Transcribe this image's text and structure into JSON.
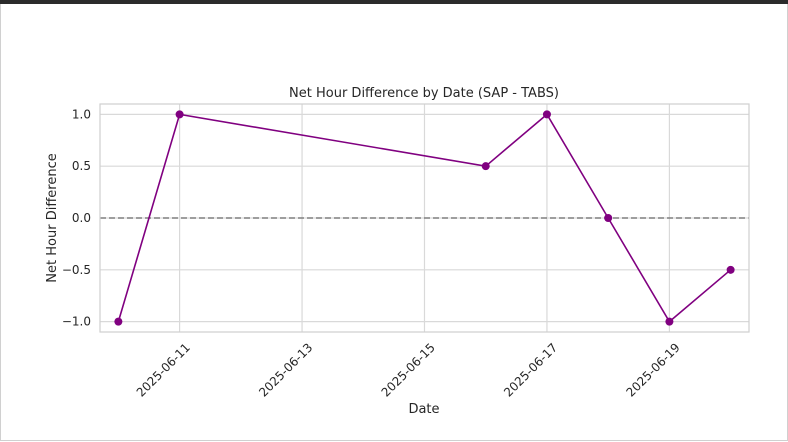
{
  "chart_data": {
    "type": "line",
    "title": "Net Hour Difference by Date (SAP - TABS)",
    "xlabel": "Date",
    "ylabel": "Net Hour Difference",
    "x": [
      "2025-06-10",
      "2025-06-11",
      "2025-06-16",
      "2025-06-17",
      "2025-06-18",
      "2025-06-19",
      "2025-06-20"
    ],
    "series": [
      {
        "values": [
          -1.0,
          1.0,
          0.5,
          1.0,
          0.0,
          -1.0,
          -0.5
        ],
        "color": "#800080"
      }
    ],
    "xticks": [
      "2025-06-11",
      "2025-06-13",
      "2025-06-15",
      "2025-06-17",
      "2025-06-19"
    ],
    "yticks": [
      1.0,
      0.5,
      0.0,
      -0.5,
      -1.0
    ],
    "ytick_labels": [
      "1.0",
      "0.5",
      "0.0",
      "−0.5",
      "−1.0"
    ],
    "xlim": [
      "2025-06-09T16:48:00",
      "2025-06-20T07:12:00"
    ],
    "ylim": [
      -1.1,
      1.1
    ],
    "reference_line": {
      "y": 0,
      "style": "dashed",
      "color": "#808080"
    },
    "grid": true,
    "marker": "circle"
  }
}
